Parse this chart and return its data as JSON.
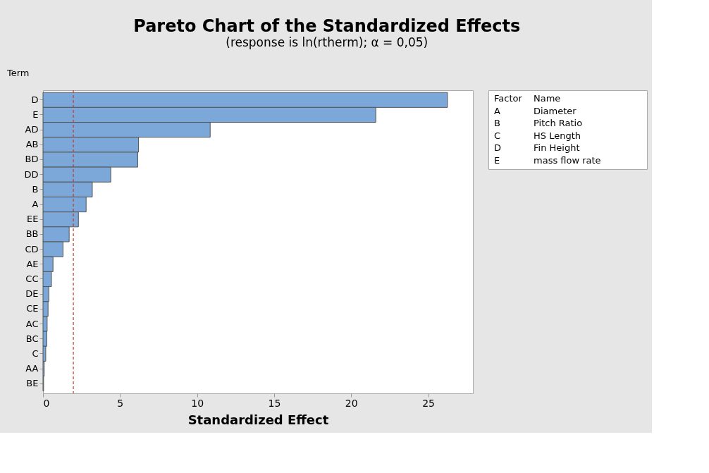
{
  "chart_data": {
    "type": "bar",
    "orientation": "horizontal",
    "title": "Pareto Chart of the Standardized Effects",
    "subtitle": "(response is ln(rtherm); α = 0,05)",
    "xlabel": "Standardized Effect",
    "ylabel": "Term",
    "categories": [
      "D",
      "E",
      "AD",
      "AB",
      "BD",
      "DD",
      "B",
      "A",
      "EE",
      "BB",
      "CD",
      "AE",
      "CC",
      "DE",
      "CE",
      "AC",
      "BC",
      "C",
      "AA",
      "BE"
    ],
    "values": [
      26.25,
      21.6,
      10.85,
      6.2,
      6.15,
      4.4,
      3.2,
      2.8,
      2.3,
      1.7,
      1.3,
      0.65,
      0.55,
      0.38,
      0.33,
      0.27,
      0.25,
      0.18,
      0.08,
      0.04
    ],
    "color": "#7ba7d9",
    "xlim": [
      0,
      27.9
    ],
    "xticks": [
      0,
      5,
      10,
      15,
      20,
      25
    ],
    "grid": false,
    "ref_lines": [
      {
        "axis": "x",
        "value": 1.97,
        "label": null,
        "color": "#c0392b",
        "line_style": "dashed"
      }
    ],
    "annotations": [
      "Factor",
      "Name",
      "A",
      "Diameter",
      "B",
      "Pitch Ratio",
      "C",
      "HS Length",
      "D",
      "Fin Height",
      "E",
      "mass flow rate"
    ]
  }
}
